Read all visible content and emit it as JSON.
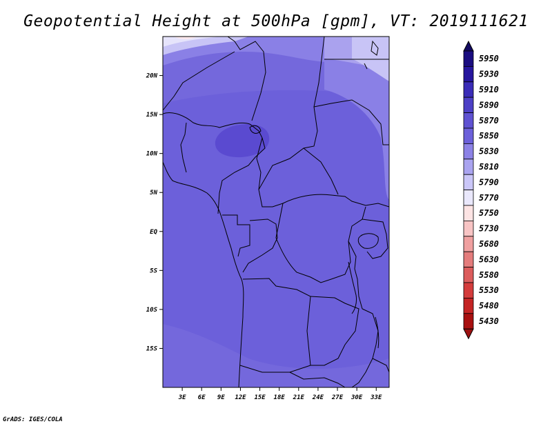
{
  "title": "Geopotential Height at 500hPa [gpm], VT: 2019111621",
  "credit": "GrADS: IGES/COLA",
  "map": {
    "lon_range": [
      0,
      35
    ],
    "lat_range": [
      -20,
      25
    ],
    "lon_ticks": [
      "3E",
      "6E",
      "9E",
      "12E",
      "15E",
      "18E",
      "21E",
      "24E",
      "27E",
      "30E",
      "33E"
    ],
    "lat_ticks": [
      "20N",
      "15N",
      "10N",
      "5N",
      "EQ",
      "5S",
      "10S",
      "15S"
    ],
    "lon_tick_values": [
      3,
      6,
      9,
      12,
      15,
      18,
      21,
      24,
      27,
      30,
      33
    ],
    "lat_tick_values": [
      20,
      15,
      10,
      5,
      0,
      -5,
      -10,
      -15
    ]
  },
  "colorbar": {
    "labels": [
      "5950",
      "5930",
      "5910",
      "5890",
      "5870",
      "5850",
      "5830",
      "5810",
      "5790",
      "5770",
      "5750",
      "5730",
      "5680",
      "5630",
      "5580",
      "5530",
      "5480",
      "5430"
    ],
    "colors": [
      "#1a0d80",
      "#26169e",
      "#3a2cb8",
      "#4d40c6",
      "#5f52d2",
      "#6c60da",
      "#8c82e6",
      "#aaa4f0",
      "#cac6f8",
      "#eae8fc",
      "#fde4e4",
      "#f8c4c4",
      "#f0a0a0",
      "#e47c7c",
      "#dc5c5c",
      "#d43c3c",
      "#c42424",
      "#a81010"
    ],
    "top_color": "#120960",
    "bottom_color": "#9c1010"
  },
  "field_colors": {
    "c5870": "#6c60da",
    "c5880": "#7468dc",
    "c5890": "#5a4ad0",
    "c5850": "#8a80e6",
    "c5830": "#aaa2ee",
    "c5810": "#c8c4f6",
    "c5790": "#e6e4fb",
    "c5770": "#fbe8ec"
  }
}
